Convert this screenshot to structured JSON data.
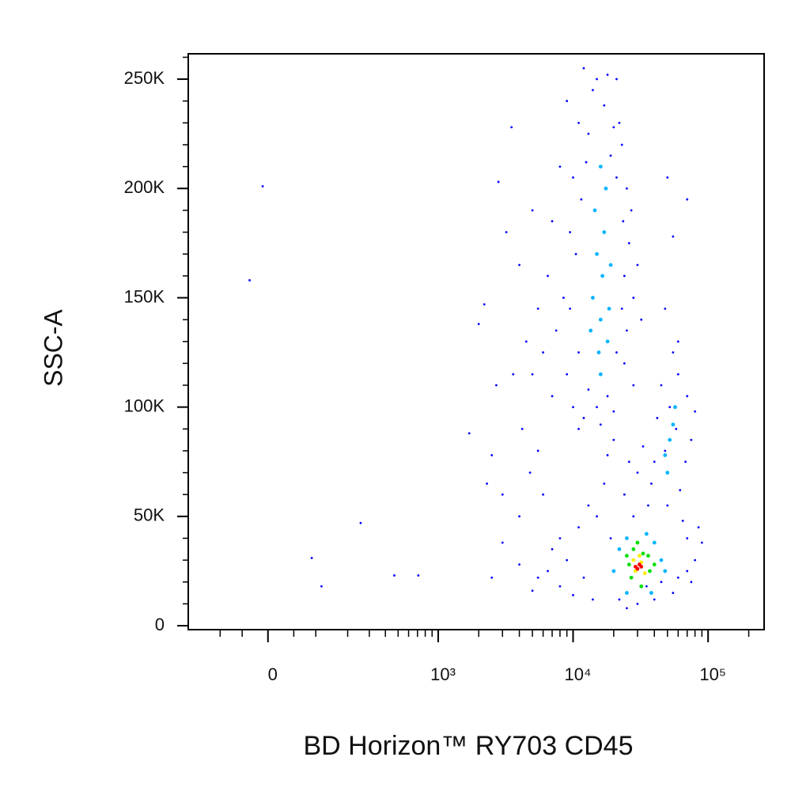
{
  "chart_data": {
    "type": "scatter",
    "x_label": "BD Horizon™ RY703 CD45",
    "y_label": "SSC-A",
    "xscale": "biexponential",
    "xscale_width": 110,
    "xlim": [
      -200,
      260000
    ],
    "ylim": [
      -1800,
      261600
    ],
    "xticks": [
      0,
      {
        "value": 1000,
        "label": "10³"
      },
      {
        "value": 10000,
        "label": "10⁴"
      },
      {
        "value": 100000,
        "label": "10⁵"
      }
    ],
    "xminor": [
      -100,
      -50,
      50,
      100,
      200,
      300,
      400,
      500,
      600,
      700,
      800,
      900,
      2000,
      3000,
      4000,
      5000,
      6000,
      7000,
      8000,
      9000,
      20000,
      30000,
      40000,
      50000,
      60000,
      70000,
      80000,
      90000,
      200000
    ],
    "yticks": [
      0,
      {
        "value": 50000,
        "label": "50K"
      },
      {
        "value": 100000,
        "label": "100K"
      },
      {
        "value": 150000,
        "label": "150K"
      },
      {
        "value": 200000,
        "label": "200K"
      },
      {
        "value": 250000,
        "label": "250K"
      }
    ],
    "yminor": [
      10000,
      20000,
      30000,
      40000,
      60000,
      70000,
      80000,
      90000,
      110000,
      120000,
      130000,
      140000,
      160000,
      170000,
      180000,
      190000,
      210000,
      220000,
      230000,
      240000,
      260000
    ],
    "series": [
      {
        "color": "#0000ff",
        "x": [
          9000,
          12000,
          15000,
          18000,
          21000,
          11000,
          13000,
          20000,
          23000,
          8000,
          10000,
          25000,
          27000,
          7000,
          9500,
          26000,
          30000,
          6500,
          8500,
          28000,
          5500,
          7500,
          25000,
          32000,
          6000,
          9000,
          24000,
          28000,
          10000,
          12000,
          20000,
          7000,
          5000,
          11000,
          16000,
          22000,
          14000,
          17000,
          19000,
          12500,
          21000,
          11500,
          23500,
          10500,
          24000,
          9500,
          23000,
          11000,
          21000,
          13000,
          18000,
          15000,
          3500,
          2800,
          3200,
          2200,
          2000,
          2700,
          1700,
          2500,
          2300,
          3000,
          4200,
          4800,
          5500,
          6000,
          4000,
          3600,
          4500,
          4000,
          5000,
          50000,
          70000,
          55000,
          48000,
          60000,
          7000,
          8000,
          9000,
          6500,
          5500,
          4000,
          3000,
          2500,
          5000,
          8000,
          10000,
          12000,
          14000,
          11000,
          13000,
          15000,
          17000,
          19000,
          22000,
          25000,
          30000,
          40000,
          55000,
          70000,
          80000,
          90000,
          85000,
          65000,
          50000,
          28000,
          24000,
          30000,
          26000,
          33000,
          38000,
          42000,
          45000,
          55000,
          60000,
          70000,
          80000,
          75000,
          68000,
          62000,
          48000,
          52000,
          58000,
          40000,
          36000,
          20000,
          18000,
          70000,
          45000,
          35000,
          75000,
          60000,
          -10,
          -35,
          256,
          90,
          115,
          468,
          710
        ],
        "values": [
          240000,
          255000,
          250000,
          252000,
          250000,
          230000,
          225000,
          228000,
          220000,
          210000,
          205000,
          200000,
          190000,
          185000,
          180000,
          175000,
          165000,
          160000,
          150000,
          150000,
          145000,
          135000,
          135000,
          140000,
          125000,
          115000,
          120000,
          110000,
          100000,
          95000,
          98000,
          105000,
          115000,
          90000,
          92000,
          230000,
          245000,
          238000,
          215000,
          212000,
          205000,
          195000,
          185000,
          170000,
          160000,
          145000,
          145000,
          125000,
          125000,
          108000,
          105000,
          100000,
          228000,
          203000,
          180000,
          147000,
          138000,
          110000,
          88000,
          78000,
          65000,
          60000,
          90000,
          70000,
          80000,
          60000,
          50000,
          115000,
          130000,
          165000,
          190000,
          205000,
          195000,
          178000,
          145000,
          130000,
          35000,
          40000,
          30000,
          25000,
          22000,
          28000,
          38000,
          22000,
          16000,
          18000,
          14000,
          22000,
          12000,
          45000,
          55000,
          50000,
          65000,
          40000,
          12000,
          8000,
          10000,
          12000,
          15000,
          25000,
          30000,
          38000,
          45000,
          48000,
          55000,
          50000,
          60000,
          70000,
          75000,
          82000,
          65000,
          95000,
          110000,
          125000,
          115000,
          105000,
          98000,
          85000,
          75000,
          62000,
          80000,
          100000,
          90000,
          75000,
          55000,
          85000,
          78000,
          40000,
          20000,
          18000,
          20000,
          22000,
          201000,
          158000,
          47000,
          31000,
          18000,
          23000,
          23000
        ]
      },
      {
        "color": "#00b4ff",
        "x": [
          14000,
          16000,
          15000,
          17000,
          16500,
          18000,
          15500,
          17500,
          16000,
          14500,
          19000,
          13500,
          16000,
          18500,
          52000,
          48000,
          55000,
          50000,
          57000,
          22000,
          25000,
          40000,
          45000,
          20000,
          25000,
          38000,
          48000,
          35000
        ],
        "values": [
          150000,
          140000,
          170000,
          180000,
          160000,
          130000,
          125000,
          200000,
          210000,
          190000,
          165000,
          135000,
          115000,
          145000,
          85000,
          78000,
          92000,
          70000,
          100000,
          35000,
          40000,
          38000,
          30000,
          25000,
          15000,
          15000,
          25000,
          42000
        ]
      },
      {
        "color": "#00e000",
        "x": [
          25000,
          28000,
          33000,
          37000,
          27000,
          32000,
          30000,
          36000,
          40000,
          26000
        ],
        "values": [
          32000,
          35000,
          33000,
          25000,
          22000,
          18000,
          38000,
          32000,
          28000,
          28000
        ]
      },
      {
        "color": "#ffee00",
        "x": [
          28000,
          32000,
          34000,
          29000,
          31000
        ],
        "values": [
          30000,
          29000,
          24000,
          25000,
          32000
        ]
      },
      {
        "color": "#ff0000",
        "x": [
          29000,
          31000,
          30000,
          32000
        ],
        "values": [
          27000,
          28000,
          26000,
          27000
        ]
      }
    ]
  }
}
